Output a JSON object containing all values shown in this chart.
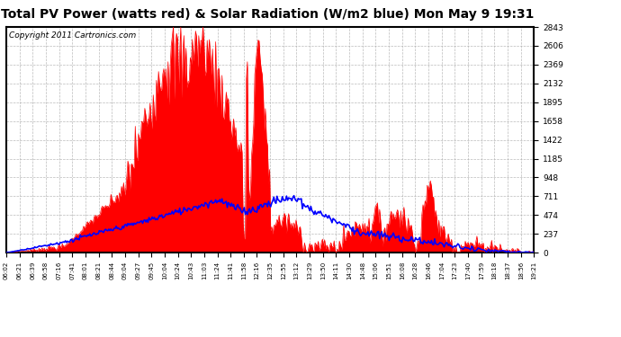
{
  "title": "Total PV Power (watts red) & Solar Radiation (W/m2 blue) Mon May 9 19:31",
  "copyright": "Copyright 2011 Cartronics.com",
  "bg_color": "#ffffff",
  "plot_bg_color": "#ffffff",
  "yticks": [
    0.0,
    236.9,
    473.8,
    710.7,
    947.7,
    1184.6,
    1421.5,
    1658.4,
    1895.3,
    2132.2,
    2369.1,
    2606.0,
    2843.0
  ],
  "ymax": 2843.0,
  "ymin": 0.0,
  "xtick_labels": [
    "06:02",
    "06:21",
    "06:39",
    "06:58",
    "07:16",
    "07:41",
    "08:01",
    "08:21",
    "08:44",
    "09:04",
    "09:27",
    "09:45",
    "10:04",
    "10:24",
    "10:43",
    "11:03",
    "11:24",
    "11:41",
    "11:58",
    "12:16",
    "12:35",
    "12:55",
    "13:12",
    "13:29",
    "13:50",
    "14:11",
    "14:30",
    "14:48",
    "15:06",
    "15:51",
    "16:08",
    "16:28",
    "16:46",
    "17:04",
    "17:23",
    "17:40",
    "17:59",
    "18:18",
    "18:37",
    "18:56",
    "19:21"
  ],
  "red_color": "#ff0000",
  "blue_color": "#0000ff",
  "grid_color": "#aaaaaa",
  "border_color": "#000000",
  "title_fontsize": 10,
  "copyright_fontsize": 6.5
}
